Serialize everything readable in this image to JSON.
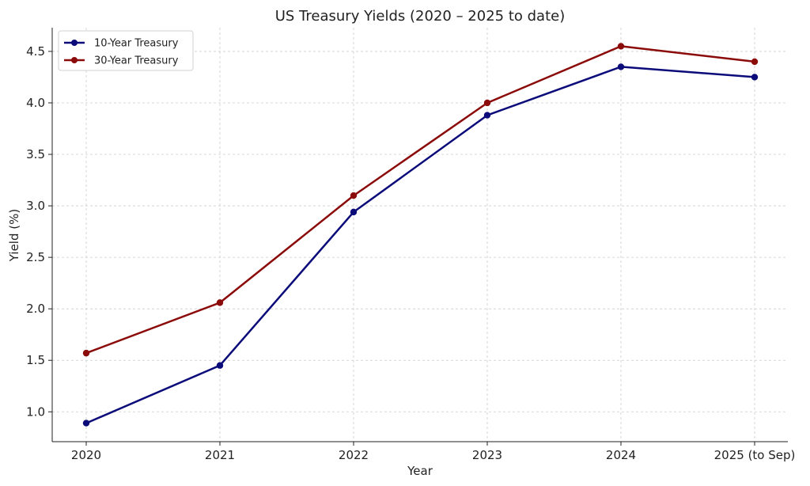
{
  "chart_data": {
    "type": "line",
    "title": "US Treasury Yields (2020 – 2025 to date)",
    "xlabel": "Year",
    "ylabel": "Yield (%)",
    "categories": [
      "2020",
      "2021",
      "2022",
      "2023",
      "2024",
      "2025 (to Sep)"
    ],
    "ylim": [
      0.71,
      4.73
    ],
    "yticks": [
      1.0,
      1.5,
      2.0,
      2.5,
      3.0,
      3.5,
      4.0,
      4.5
    ],
    "ytick_labels": [
      "1.0",
      "1.5",
      "2.0",
      "2.5",
      "3.0",
      "3.5",
      "4.0",
      "4.5"
    ],
    "grid": true,
    "legend_position": "top-left",
    "series": [
      {
        "name": "10-Year Treasury",
        "color": "#0b0b7a",
        "values": [
          0.89,
          1.45,
          2.94,
          3.88,
          4.35,
          4.25
        ]
      },
      {
        "name": "30-Year Treasury",
        "color": "#8b0a0a",
        "values": [
          1.57,
          2.06,
          3.1,
          4.0,
          4.55,
          4.4
        ]
      }
    ]
  }
}
